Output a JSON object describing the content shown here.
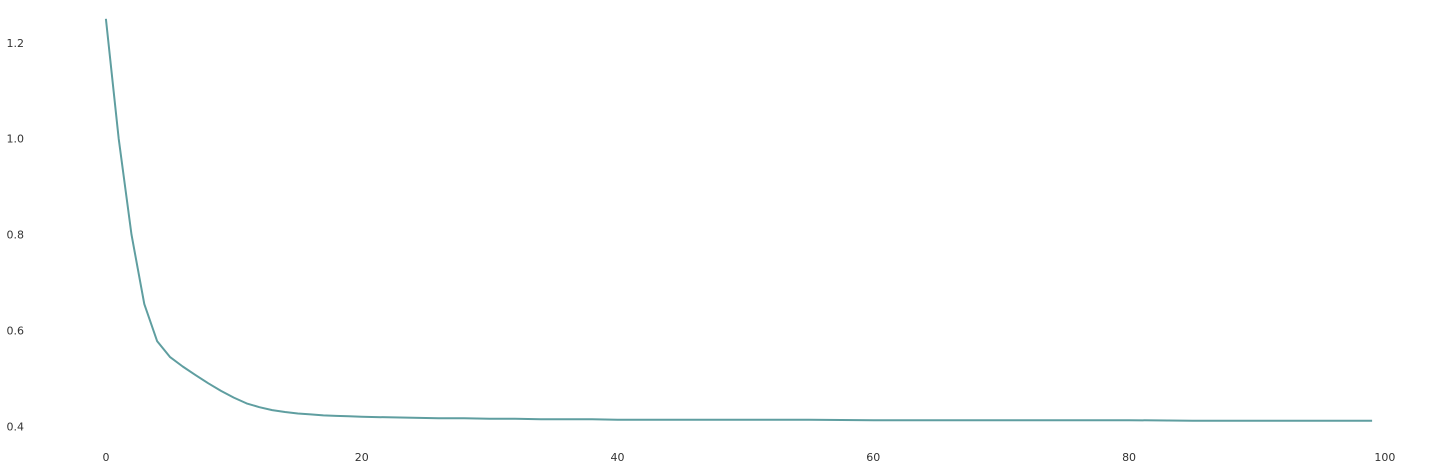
{
  "chart_data": {
    "type": "line",
    "title": "",
    "xlabel": "",
    "ylabel": "",
    "xlim": [
      -5,
      104
    ],
    "ylim": [
      0.38,
      1.26
    ],
    "grid": false,
    "legend": "none",
    "x_ticks": [
      {
        "value": 0,
        "label": "0"
      },
      {
        "value": 20,
        "label": "20"
      },
      {
        "value": 40,
        "label": "40"
      },
      {
        "value": 60,
        "label": "60"
      },
      {
        "value": 80,
        "label": "80"
      },
      {
        "value": 100,
        "label": "100"
      }
    ],
    "y_ticks": [
      {
        "value": 0.4,
        "label": "0.4"
      },
      {
        "value": 0.6,
        "label": "0.6"
      },
      {
        "value": 0.8,
        "label": "0.8"
      },
      {
        "value": 1.0,
        "label": "1.0"
      },
      {
        "value": 1.2,
        "label": "1.2"
      }
    ],
    "series": [
      {
        "color": "#5f9ea0",
        "x": [
          0,
          1,
          2,
          3,
          4,
          5,
          6,
          7,
          8,
          9,
          10,
          11,
          12,
          13,
          14,
          15,
          16,
          17,
          18,
          19,
          20,
          22,
          24,
          26,
          28,
          30,
          32,
          34,
          36,
          38,
          40,
          45,
          50,
          55,
          60,
          65,
          70,
          75,
          80,
          85,
          90,
          95,
          99
        ],
        "y": [
          1.25,
          1.0,
          0.8,
          0.655,
          0.578,
          0.545,
          0.525,
          0.507,
          0.49,
          0.474,
          0.46,
          0.448,
          0.44,
          0.434,
          0.43,
          0.427,
          0.425,
          0.423,
          0.422,
          0.421,
          0.42,
          0.419,
          0.418,
          0.417,
          0.417,
          0.416,
          0.416,
          0.415,
          0.415,
          0.415,
          0.414,
          0.414,
          0.414,
          0.414,
          0.413,
          0.413,
          0.413,
          0.413,
          0.413,
          0.412,
          0.412,
          0.412,
          0.412
        ]
      }
    ]
  }
}
